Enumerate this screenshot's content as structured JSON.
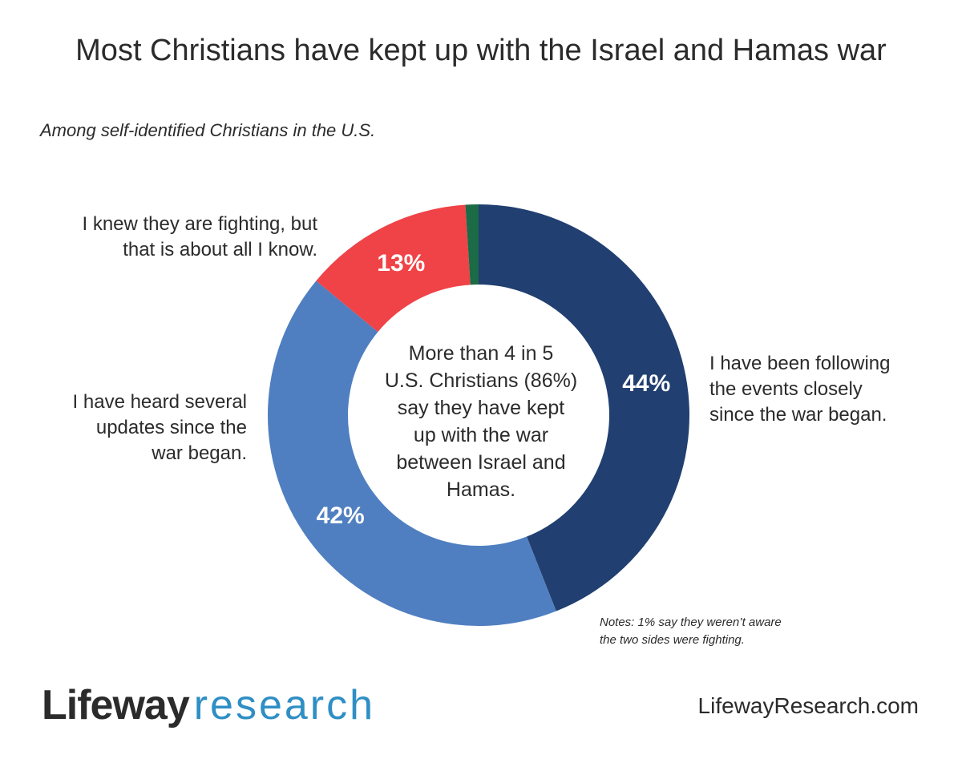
{
  "title": "Most Christians have kept up with the Israel and Hamas war",
  "subtitle": "Among self-identified Christians in the U.S.",
  "chart_data": {
    "type": "pie",
    "donut": true,
    "slices": [
      {
        "label_lines": [
          "I have been following",
          "the events closely",
          "since the war began."
        ],
        "value": 44,
        "value_label": "44%",
        "color": "#213f70"
      },
      {
        "label_lines": [
          "I have heard several",
          "updates since the",
          "war began."
        ],
        "value": 42,
        "value_label": "42%",
        "color": "#4f7fc0"
      },
      {
        "label_lines": [
          "I knew they are fighting, but",
          "that is about all I know."
        ],
        "value": 13,
        "value_label": "13%",
        "color": "#ef4347"
      },
      {
        "label_lines": [],
        "value": 1,
        "value_label": "",
        "color": "#1a6b46"
      }
    ],
    "center_text_lines": [
      "More than 4 in 5",
      "U.S. Christians (86%)",
      "say they have kept",
      "up with the war",
      "between Israel and",
      "Hamas."
    ]
  },
  "note_lines": [
    "Notes: 1% say they weren’t aware",
    "the two sides were fighting."
  ],
  "footer": {
    "logo_part1": "Lifeway",
    "logo_part2": "research",
    "website": "LifewayResearch.com"
  }
}
